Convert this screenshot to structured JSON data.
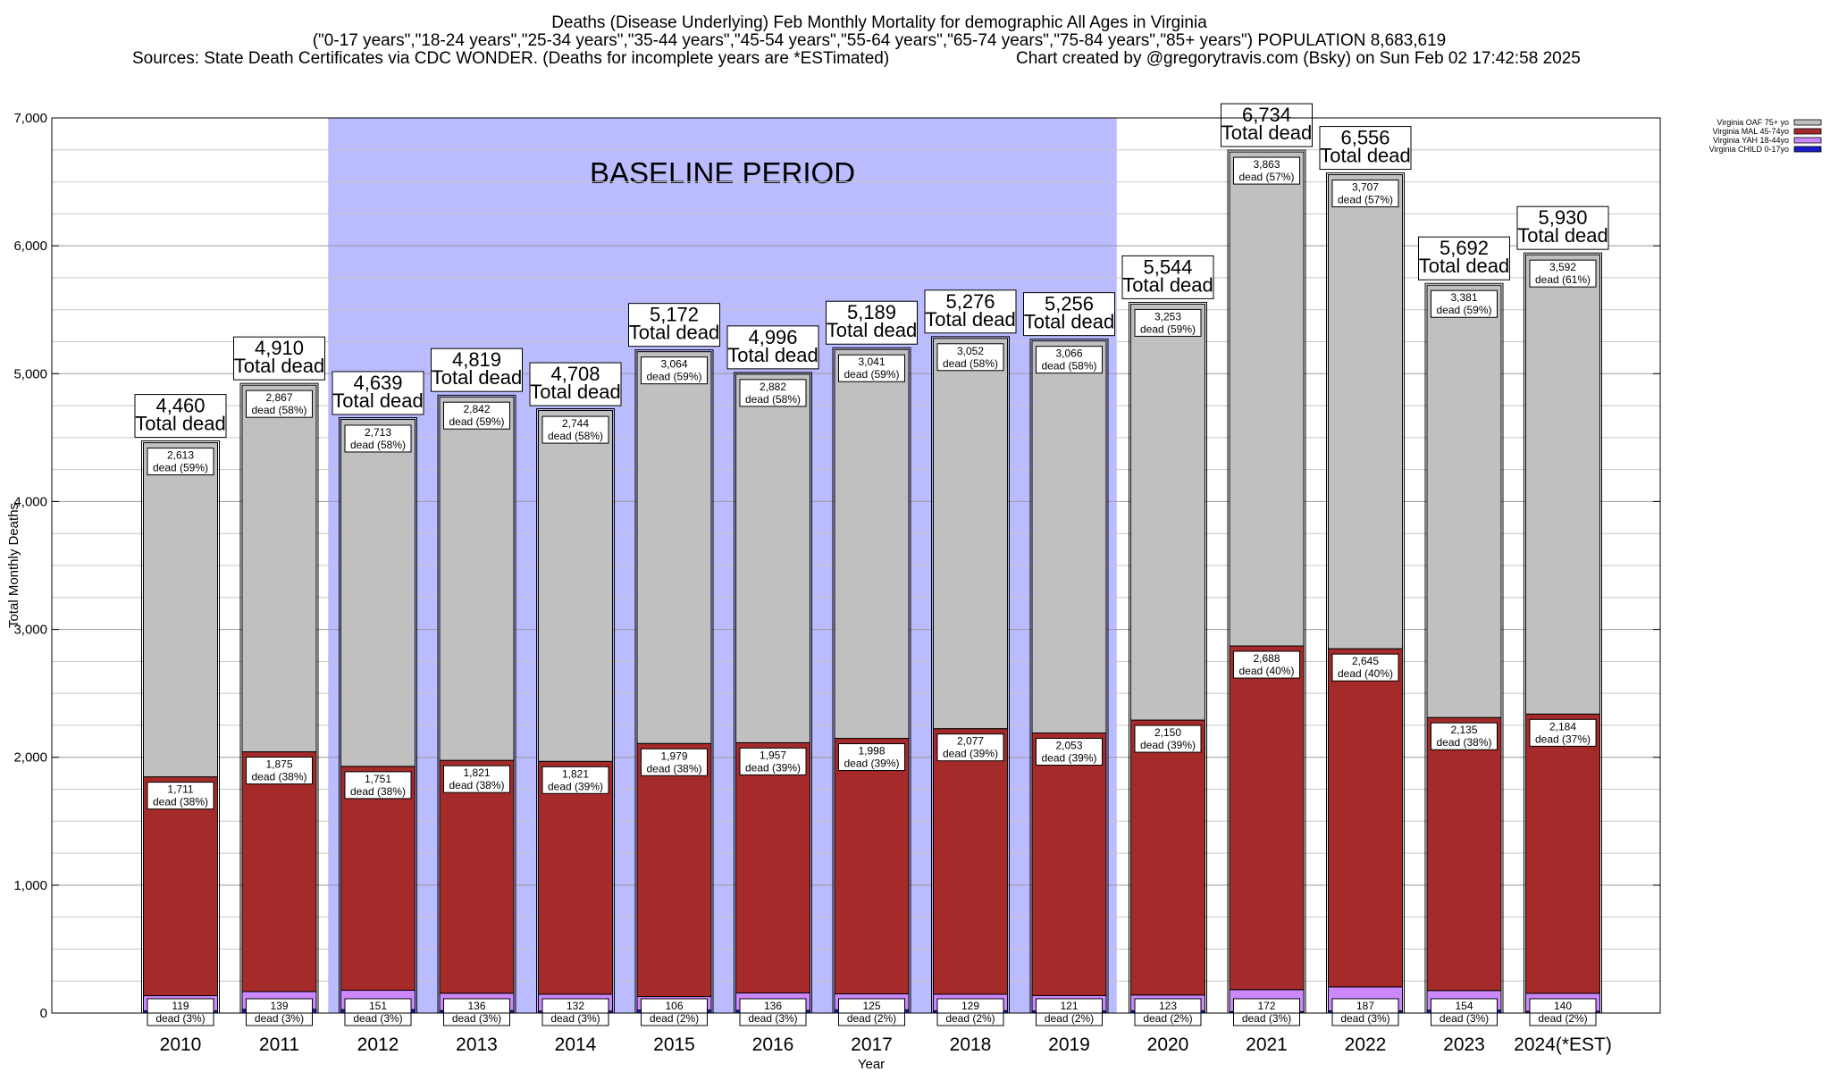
{
  "header": {
    "title": "Deaths (Disease Underlying) Feb Monthly Mortality for demographic All Ages in Virginia",
    "subtitle": "(\"0-17 years\",\"18-24 years\",\"25-34 years\",\"35-44 years\",\"45-54 years\",\"55-64 years\",\"65-74 years\",\"75-84 years\",\"85+ years\") POPULATION 8,683,619",
    "sources": "Sources: State Death Certificates via CDC WONDER. (Deaths for incomplete years are *ESTimated)",
    "credit": "Chart created by @gregorytravis.com (Bsky) on Sun Feb 02 17:42:58 2025"
  },
  "colors": {
    "oaf": "#c0c0c0",
    "mal": "#a52a2a",
    "yah": "#cc88ff",
    "child": "#1a1acc",
    "baseline": "#bbbbff",
    "total_box": "#ffffff"
  },
  "chart_data": {
    "type": "bar",
    "stacked": true,
    "xlabel": "Year",
    "ylabel": "Total Monthly Deaths",
    "ylim": [
      0,
      7000
    ],
    "yticks": [
      "0",
      "1,000",
      "2,000",
      "3,000",
      "4,000",
      "5,000",
      "6,000",
      "7,000"
    ],
    "grid": true,
    "legend_position": "top-right",
    "annotation": "BASELINE PERIOD",
    "baseline_range": [
      "2012",
      "2019"
    ],
    "categories": [
      "2010",
      "2011",
      "2012",
      "2013",
      "2014",
      "2015",
      "2016",
      "2017",
      "2018",
      "2019",
      "2020",
      "2021",
      "2022",
      "2023",
      "2024(*EST)"
    ],
    "series": [
      {
        "name": "Virginia CHILD 0-17yo",
        "values": [
          17,
          29,
          27,
          19,
          15,
          23,
          21,
          25,
          18,
          16,
          18,
          11,
          17,
          22,
          14
        ]
      },
      {
        "name": "Virginia YAH 18-44yo",
        "values": [
          119,
          139,
          151,
          136,
          132,
          106,
          136,
          125,
          129,
          121,
          123,
          172,
          187,
          154,
          140
        ]
      },
      {
        "name": "Virginia MAL 45-74yo",
        "values": [
          1711,
          1875,
          1751,
          1821,
          1821,
          1979,
          1957,
          1998,
          2077,
          2053,
          2150,
          2688,
          2645,
          2135,
          2184
        ]
      },
      {
        "name": "Virginia OAF 75+ yo",
        "values": [
          2613,
          2867,
          2713,
          2842,
          2744,
          3064,
          2882,
          3041,
          3052,
          3066,
          3253,
          3863,
          3707,
          3381,
          3592
        ]
      }
    ],
    "totals": [
      4460,
      4910,
      4639,
      4819,
      4708,
      5172,
      4996,
      5189,
      5276,
      5256,
      5544,
      6734,
      6556,
      5692,
      5930
    ],
    "total_label_text": "Total dead",
    "oaf_labels": [
      "2,613",
      "2,867",
      "2,713",
      "2,842",
      "2,744",
      "3,064",
      "2,882",
      "3,041",
      "3,052",
      "3,066",
      "3,253",
      "3,863",
      "3,707",
      "3,381",
      "3,592"
    ],
    "oaf_pcts": [
      "dead (59%)",
      "dead (58%)",
      "dead (58%)",
      "dead (59%)",
      "dead (58%)",
      "dead (59%)",
      "dead (58%)",
      "dead (59%)",
      "dead (58%)",
      "dead (58%)",
      "dead (59%)",
      "dead (57%)",
      "dead (57%)",
      "dead (59%)",
      "dead (61%)"
    ],
    "mal_labels": [
      "1,711",
      "1,875",
      "1,751",
      "1,821",
      "1,821",
      "1,979",
      "1,957",
      "1,998",
      "2,077",
      "2,053",
      "2,150",
      "2,688",
      "2,645",
      "2,135",
      "2,184"
    ],
    "mal_pcts": [
      "dead (38%)",
      "dead (38%)",
      "dead (38%)",
      "dead (38%)",
      "dead (39%)",
      "dead (38%)",
      "dead (39%)",
      "dead (39%)",
      "dead (39%)",
      "dead (39%)",
      "dead (39%)",
      "dead (40%)",
      "dead (40%)",
      "dead (38%)",
      "dead (37%)"
    ],
    "yah_labels": [
      "119",
      "139",
      "151",
      "136",
      "132",
      "106",
      "136",
      "125",
      "129",
      "121",
      "123",
      "172",
      "187",
      "154",
      "140"
    ],
    "yah_pcts": [
      "dead (3%)",
      "dead (3%)",
      "dead (3%)",
      "dead (3%)",
      "dead (3%)",
      "dead (2%)",
      "dead (3%)",
      "dead (2%)",
      "dead (2%)",
      "dead (2%)",
      "dead (2%)",
      "dead (3%)",
      "dead (3%)",
      "dead (3%)",
      "dead (2%)"
    ],
    "total_labels": [
      "4,460",
      "4,910",
      "4,639",
      "4,819",
      "4,708",
      "5,172",
      "4,996",
      "5,189",
      "5,276",
      "5,256",
      "5,544",
      "6,734",
      "6,556",
      "5,692",
      "5,930"
    ]
  }
}
